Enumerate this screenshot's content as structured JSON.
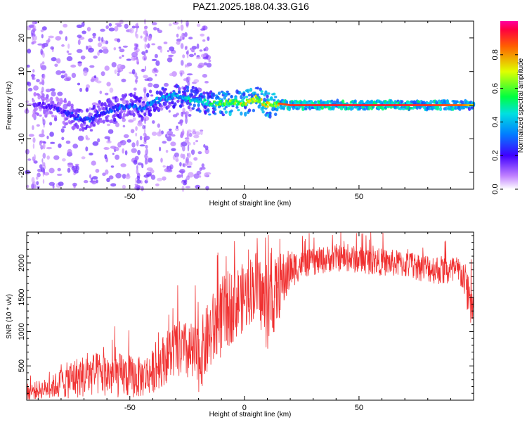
{
  "title": "PAZ1.2025.188.04.33.G16",
  "chart_data": [
    {
      "type": "heatmap",
      "xlabel": "Height of straight line (km)",
      "ylabel": "Frequency (Hz)",
      "xlim": [
        -95,
        100
      ],
      "ylim": [
        -25,
        25
      ],
      "x_ticks": [
        -50,
        0,
        50
      ],
      "y_ticks": [
        -20,
        -10,
        0,
        10,
        20
      ],
      "colorbar": {
        "label": "Normalized spectral amplitude",
        "range": [
          0,
          1
        ],
        "ticks": [
          0.0,
          0.2,
          0.4,
          0.6,
          0.8
        ],
        "colormap": "rainbow (white-purple-blue-cyan-green-yellow-red-magenta)"
      },
      "ridge_profile": [
        {
          "x": -88,
          "freq": 0,
          "amp": 0.2
        },
        {
          "x": -80,
          "freq": -1.5,
          "amp": 0.25
        },
        {
          "x": -74,
          "freq": -3.5,
          "amp": 0.3
        },
        {
          "x": -68,
          "freq": -4.5,
          "amp": 0.35
        },
        {
          "x": -62,
          "freq": -2,
          "amp": 0.3
        },
        {
          "x": -56,
          "freq": -1,
          "amp": 0.35
        },
        {
          "x": -50,
          "freq": 0,
          "amp": 0.35
        },
        {
          "x": -45,
          "freq": -1,
          "amp": 0.35
        },
        {
          "x": -40,
          "freq": 1,
          "amp": 0.4
        },
        {
          "x": -35,
          "freq": 2,
          "amp": 0.45
        },
        {
          "x": -30,
          "freq": 3,
          "amp": 0.45
        },
        {
          "x": -25,
          "freq": 2,
          "amp": 0.5
        },
        {
          "x": -20,
          "freq": 1.5,
          "amp": 0.55
        },
        {
          "x": -15,
          "freq": 0.5,
          "amp": 0.6
        },
        {
          "x": -10,
          "freq": 0.5,
          "amp": 0.7
        },
        {
          "x": -5,
          "freq": 1,
          "amp": 0.75
        },
        {
          "x": 0,
          "freq": 0.5,
          "amp": 0.8
        },
        {
          "x": 5,
          "freq": 2,
          "amp": 0.75
        },
        {
          "x": 10,
          "freq": 0,
          "amp": 0.8
        },
        {
          "x": 15,
          "freq": 0.5,
          "amp": 0.85
        },
        {
          "x": 20,
          "freq": 0,
          "amp": 0.9
        },
        {
          "x": 40,
          "freq": 0,
          "amp": 0.92
        },
        {
          "x": 60,
          "freq": 0,
          "amp": 0.92
        },
        {
          "x": 80,
          "freq": 0,
          "amp": 0.9
        },
        {
          "x": 95,
          "freq": 0,
          "amp": 0.85
        },
        {
          "x": 100,
          "freq": 0,
          "amp": 0.7
        }
      ]
    },
    {
      "type": "line",
      "xlabel": "Height of straight line (km)",
      "ylabel": "SNR (10 * v/v)",
      "xlim": [
        -95,
        100
      ],
      "ylim": [
        0,
        2450
      ],
      "x_ticks": [
        -50,
        0,
        50
      ],
      "y_ticks": [
        500,
        1000,
        1500,
        2000
      ],
      "color": "#f03030",
      "envelope": [
        {
          "x": -95,
          "mean": 120,
          "spread": 120
        },
        {
          "x": -85,
          "mean": 180,
          "spread": 150
        },
        {
          "x": -75,
          "mean": 320,
          "spread": 300
        },
        {
          "x": -65,
          "mean": 380,
          "spread": 320
        },
        {
          "x": -55,
          "mean": 360,
          "spread": 330
        },
        {
          "x": -45,
          "mean": 330,
          "spread": 300
        },
        {
          "x": -40,
          "mean": 420,
          "spread": 320
        },
        {
          "x": -35,
          "mean": 600,
          "spread": 380
        },
        {
          "x": -30,
          "mean": 750,
          "spread": 420
        },
        {
          "x": -25,
          "mean": 700,
          "spread": 450
        },
        {
          "x": -20,
          "mean": 600,
          "spread": 500
        },
        {
          "x": -15,
          "mean": 950,
          "spread": 550
        },
        {
          "x": -10,
          "mean": 1200,
          "spread": 600
        },
        {
          "x": -5,
          "mean": 1400,
          "spread": 550
        },
        {
          "x": 0,
          "mean": 1500,
          "spread": 500
        },
        {
          "x": 5,
          "mean": 1700,
          "spread": 500
        },
        {
          "x": 10,
          "mean": 1300,
          "spread": 600
        },
        {
          "x": 15,
          "mean": 1650,
          "spread": 500
        },
        {
          "x": 20,
          "mean": 1900,
          "spread": 300
        },
        {
          "x": 25,
          "mean": 1980,
          "spread": 200
        },
        {
          "x": 40,
          "mean": 2080,
          "spread": 200
        },
        {
          "x": 55,
          "mean": 2030,
          "spread": 200
        },
        {
          "x": 70,
          "mean": 1980,
          "spread": 200
        },
        {
          "x": 85,
          "mean": 1900,
          "spread": 220
        },
        {
          "x": 95,
          "mean": 1850,
          "spread": 250
        },
        {
          "x": 100,
          "mean": 1300,
          "spread": 400
        }
      ]
    }
  ]
}
